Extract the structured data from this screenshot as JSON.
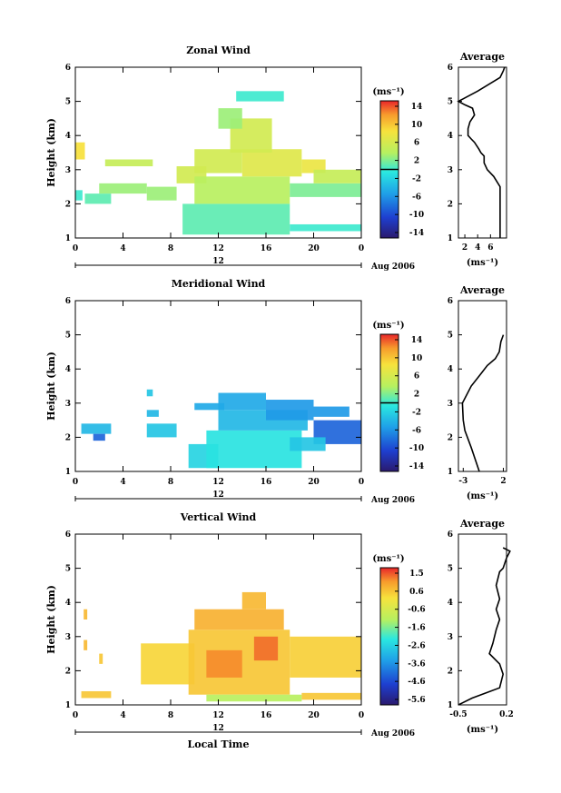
{
  "common": {
    "x_ticks": [
      "0",
      "4",
      "8",
      "12",
      "16",
      "20",
      "0"
    ],
    "day_label": "12",
    "month_label": "Aug 2006",
    "ylabel": "Height (km)",
    "y_ticks": [
      "1",
      "2",
      "3",
      "4",
      "5",
      "6"
    ],
    "unit_label": "(ms⁻¹)",
    "avg_title": "Average",
    "xlabel": "Local Time"
  },
  "chart_data": [
    {
      "type": "heatmap",
      "title": "Zonal Wind",
      "xlabel": "",
      "ylabel": "Height (km)",
      "xlim": [
        0,
        24
      ],
      "ylim": [
        1,
        6
      ],
      "colorbar": {
        "ticks": [
          "14",
          "10",
          "6",
          "2",
          "-2",
          "-6",
          "-10",
          "-14"
        ],
        "min": -16,
        "max": 16,
        "zero_line": 0
      },
      "blocks": [
        {
          "x": [
            0.0,
            0.8
          ],
          "y": [
            3.3,
            3.8
          ],
          "v": 9
        },
        {
          "x": [
            0.0,
            0.6
          ],
          "y": [
            2.1,
            2.4
          ],
          "v": 0
        },
        {
          "x": [
            0.8,
            3.0
          ],
          "y": [
            2.0,
            2.3
          ],
          "v": 1
        },
        {
          "x": [
            2.0,
            6.0
          ],
          "y": [
            2.3,
            2.6
          ],
          "v": 3
        },
        {
          "x": [
            2.5,
            6.5
          ],
          "y": [
            3.1,
            3.3
          ],
          "v": 5
        },
        {
          "x": [
            6.0,
            8.5
          ],
          "y": [
            2.1,
            2.5
          ],
          "v": 3
        },
        {
          "x": [
            8.5,
            11.0
          ],
          "y": [
            2.6,
            3.1
          ],
          "v": 6
        },
        {
          "x": [
            9.0,
            18.0
          ],
          "y": [
            1.1,
            2.0
          ],
          "v": 1
        },
        {
          "x": [
            10.0,
            18.0
          ],
          "y": [
            2.0,
            2.8
          ],
          "v": 4
        },
        {
          "x": [
            10.0,
            14.0
          ],
          "y": [
            2.9,
            3.6
          ],
          "v": 6
        },
        {
          "x": [
            14.0,
            19.0
          ],
          "y": [
            2.8,
            3.6
          ],
          "v": 7
        },
        {
          "x": [
            13.0,
            16.5
          ],
          "y": [
            3.5,
            4.5
          ],
          "v": 6
        },
        {
          "x": [
            12.0,
            14.0
          ],
          "y": [
            4.2,
            4.8
          ],
          "v": 3
        },
        {
          "x": [
            13.5,
            17.5
          ],
          "y": [
            5.0,
            5.3
          ],
          "v": 0
        },
        {
          "x": [
            18.0,
            24.0
          ],
          "y": [
            1.2,
            1.4
          ],
          "v": 0
        },
        {
          "x": [
            18.0,
            24.0
          ],
          "y": [
            2.2,
            2.6
          ],
          "v": 2
        },
        {
          "x": [
            19.0,
            21.0
          ],
          "y": [
            2.9,
            3.3
          ],
          "v": 8
        },
        {
          "x": [
            20.0,
            24.0
          ],
          "y": [
            2.6,
            3.0
          ],
          "v": 5
        }
      ],
      "profile": {
        "x": [
          7.5,
          7.5,
          6.5,
          5.5,
          5.0,
          5.0,
          4.5,
          4.2,
          3.5,
          3.0,
          2.5,
          2.5,
          2.5,
          2.8,
          3.5,
          3.2,
          2.0,
          1.0,
          4.0,
          7.5,
          8.0,
          8.2
        ],
        "y": [
          1.0,
          2.5,
          2.8,
          3.0,
          3.2,
          3.4,
          3.5,
          3.6,
          3.8,
          3.9,
          4.0,
          4.1,
          4.2,
          4.4,
          4.6,
          4.8,
          4.9,
          5.0,
          5.3,
          5.7,
          5.9,
          6.0
        ],
        "xlim": [
          1,
          8.5
        ],
        "x_ticks": [
          "2",
          "4",
          "6"
        ],
        "xlabel": "(ms⁻¹)"
      }
    },
    {
      "type": "heatmap",
      "title": "Meridional Wind",
      "xlabel": "",
      "ylabel": "Height (km)",
      "xlim": [
        0,
        24
      ],
      "ylim": [
        1,
        6
      ],
      "colorbar": {
        "ticks": [
          "14",
          "10",
          "6",
          "2",
          "-2",
          "-6",
          "-10",
          "-14"
        ],
        "min": -16,
        "max": 16,
        "zero_line": 0
      },
      "blocks": [
        {
          "x": [
            0.5,
            3.0
          ],
          "y": [
            2.1,
            2.4
          ],
          "v": -4
        },
        {
          "x": [
            1.5,
            2.5
          ],
          "y": [
            1.9,
            2.1
          ],
          "v": -9
        },
        {
          "x": [
            6.0,
            8.5
          ],
          "y": [
            2.0,
            2.4
          ],
          "v": -3
        },
        {
          "x": [
            6.0,
            7.0
          ],
          "y": [
            2.6,
            2.8
          ],
          "v": -4
        },
        {
          "x": [
            6.0,
            6.5
          ],
          "y": [
            3.2,
            3.4
          ],
          "v": -3
        },
        {
          "x": [
            9.5,
            12.0
          ],
          "y": [
            1.1,
            1.8
          ],
          "v": -2
        },
        {
          "x": [
            10.0,
            12.5
          ],
          "y": [
            2.8,
            3.0
          ],
          "v": -5
        },
        {
          "x": [
            11.0,
            19.0
          ],
          "y": [
            1.1,
            2.2
          ],
          "v": -1
        },
        {
          "x": [
            12.0,
            19.5
          ],
          "y": [
            2.2,
            2.8
          ],
          "v": -4
        },
        {
          "x": [
            12.0,
            16.0
          ],
          "y": [
            2.8,
            3.3
          ],
          "v": -5
        },
        {
          "x": [
            16.0,
            20.0
          ],
          "y": [
            2.5,
            3.1
          ],
          "v": -6
        },
        {
          "x": [
            20.0,
            24.0
          ],
          "y": [
            1.8,
            2.5
          ],
          "v": -9
        },
        {
          "x": [
            20.0,
            23.0
          ],
          "y": [
            2.6,
            2.9
          ],
          "v": -6
        },
        {
          "x": [
            18.0,
            21.0
          ],
          "y": [
            1.6,
            2.0
          ],
          "v": -3
        }
      ],
      "profile": {
        "x": [
          -1.0,
          -2.0,
          -2.8,
          -3.0,
          -3.1,
          -2.0,
          -1.0,
          0.0,
          1.0,
          1.5,
          1.7,
          2.0
        ],
        "y": [
          1.0,
          1.7,
          2.2,
          2.5,
          3.0,
          3.5,
          3.8,
          4.1,
          4.3,
          4.5,
          4.8,
          5.0
        ],
        "xlim": [
          -3.6,
          2.4
        ],
        "x_ticks": [
          "-3",
          "2"
        ],
        "xlabel": "(ms⁻¹)"
      }
    },
    {
      "type": "heatmap",
      "title": "Vertical Wind",
      "xlabel": "Local Time",
      "ylabel": "Height (km)",
      "xlim": [
        0,
        24
      ],
      "ylim": [
        1,
        6
      ],
      "colorbar": {
        "ticks": [
          "1.5",
          "0.6",
          "-0.6",
          "-1.6",
          "-2.6",
          "-3.6",
          "-4.6",
          "-5.6"
        ],
        "min": -6,
        "max": 2,
        "zero_line": null
      },
      "blocks": [
        {
          "x": [
            0.5,
            3.0
          ],
          "y": [
            1.2,
            1.4
          ],
          "v": 0.6
        },
        {
          "x": [
            0.7,
            1.0
          ],
          "y": [
            2.6,
            2.9
          ],
          "v": 0.8
        },
        {
          "x": [
            0.7,
            1.0
          ],
          "y": [
            3.5,
            3.8
          ],
          "v": 0.8
        },
        {
          "x": [
            2.0,
            2.3
          ],
          "y": [
            2.2,
            2.5
          ],
          "v": 0.6
        },
        {
          "x": [
            5.5,
            10.0
          ],
          "y": [
            1.6,
            2.8
          ],
          "v": 0.4
        },
        {
          "x": [
            9.5,
            18.0
          ],
          "y": [
            1.3,
            3.2
          ],
          "v": 0.6
        },
        {
          "x": [
            10.0,
            17.5
          ],
          "y": [
            3.2,
            3.8
          ],
          "v": 0.9
        },
        {
          "x": [
            14.0,
            16.0
          ],
          "y": [
            3.8,
            4.3
          ],
          "v": 0.8
        },
        {
          "x": [
            11.0,
            14.0
          ],
          "y": [
            1.8,
            2.6
          ],
          "v": 1.3
        },
        {
          "x": [
            15.0,
            17.0
          ],
          "y": [
            2.3,
            3.0
          ],
          "v": 1.5
        },
        {
          "x": [
            11.0,
            19.0
          ],
          "y": [
            1.1,
            1.3
          ],
          "v": -1.0
        },
        {
          "x": [
            18.0,
            24.0
          ],
          "y": [
            1.8,
            3.0
          ],
          "v": 0.5
        },
        {
          "x": [
            19.0,
            24.0
          ],
          "y": [
            1.15,
            1.35
          ],
          "v": 0.6
        }
      ],
      "profile": {
        "x": [
          -0.5,
          -0.3,
          0.1,
          0.15,
          0.1,
          -0.05,
          0.0,
          0.05,
          0.1,
          0.05,
          0.1,
          0.05,
          0.1,
          0.15,
          0.2,
          0.25,
          0.15
        ],
        "y": [
          1.0,
          1.2,
          1.5,
          1.9,
          2.2,
          2.5,
          2.8,
          3.2,
          3.5,
          3.8,
          4.1,
          4.5,
          4.9,
          5.0,
          5.3,
          5.5,
          5.6
        ],
        "xlim": [
          -0.5,
          0.2
        ],
        "x_ticks": [
          "-0.5",
          "0.2"
        ],
        "xlabel": "(ms⁻¹)"
      }
    }
  ]
}
